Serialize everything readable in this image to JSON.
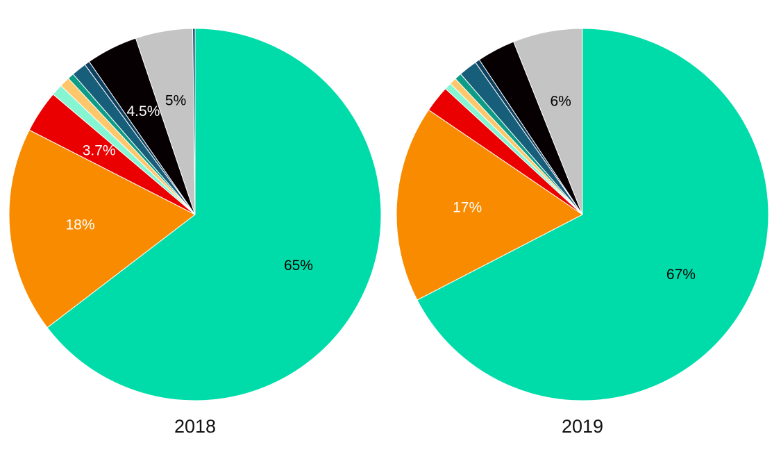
{
  "chart_data": [
    {
      "type": "pie",
      "caption": "2018",
      "slices": [
        {
          "value": 65.0,
          "color": "#00DCA9",
          "label": "65%",
          "label_color": "#000000"
        },
        {
          "value": 18.0,
          "color": "#F98B00",
          "label": "18%",
          "label_color": "#ffffff"
        },
        {
          "value": 3.7,
          "color": "#EA0000",
          "label": "3.7%",
          "label_color": "#ffffff"
        },
        {
          "value": 1.0,
          "color": "#86F5D2",
          "label": ""
        },
        {
          "value": 0.9,
          "color": "#FFC76C",
          "label": ""
        },
        {
          "value": 0.55,
          "color": "#0D9C86",
          "label": ""
        },
        {
          "value": 1.3,
          "color": "#175E7A",
          "label": ""
        },
        {
          "value": 0.45,
          "color": "#0D3F5E",
          "label": ""
        },
        {
          "value": 4.5,
          "color": "#060002",
          "label": "4.5%",
          "label_color": "#ffffff"
        },
        {
          "value": 5.0,
          "color": "#C4C4C4",
          "label": "5%",
          "label_color": "#000000"
        },
        {
          "value": 0.2,
          "color": "#0A3B61",
          "label": ""
        }
      ]
    },
    {
      "type": "pie",
      "caption": "2019",
      "slices": [
        {
          "value": 67.0,
          "color": "#00DCA9",
          "label": "67%",
          "label_color": "#000000"
        },
        {
          "value": 17.0,
          "color": "#F98B00",
          "label": "17%",
          "label_color": "#ffffff"
        },
        {
          "value": 2.3,
          "color": "#EA0000",
          "label": ""
        },
        {
          "value": 0.6,
          "color": "#86F5D2",
          "label": ""
        },
        {
          "value": 0.6,
          "color": "#FFC76C",
          "label": ""
        },
        {
          "value": 0.6,
          "color": "#0D9C86",
          "label": ""
        },
        {
          "value": 1.6,
          "color": "#175E7A",
          "label": ""
        },
        {
          "value": 0.4,
          "color": "#0D3F5E",
          "label": ""
        },
        {
          "value": 3.3,
          "color": "#060002",
          "label": ""
        },
        {
          "value": 6.0,
          "color": "#C4C4C4",
          "label": "6%",
          "label_color": "#000000"
        }
      ]
    }
  ]
}
